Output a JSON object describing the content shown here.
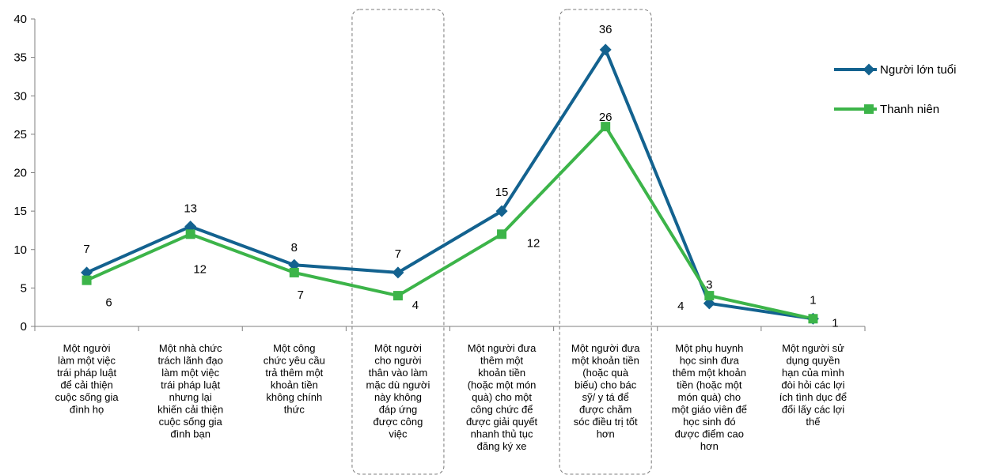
{
  "chart_data": {
    "type": "line",
    "title": "",
    "xlabel": "",
    "ylabel": "",
    "ylim": [
      0,
      40
    ],
    "yticks": [
      0,
      5,
      10,
      15,
      20,
      25,
      30,
      35,
      40
    ],
    "grid": false,
    "legend_position": "right",
    "categories": [
      "Một người làm một việc trái pháp luật để cải thiện cuộc sống gia đình họ",
      "Một nhà chức trách lãnh đạo làm một việc trái pháp luật nhưng lại khiến cải thiện cuộc sống gia đình bạn",
      "Một công chức yêu cầu trả thêm một khoản tiền không chính thức",
      "Một người cho người thân vào làm mặc dù người này không đáp ứng được công việc",
      "Một người đưa thêm một khoản tiền (hoặc một món quà) cho một công chức để được giải quyết nhanh thủ tục đăng ký xe",
      "Một người đưa một khoản tiền (hoặc quà biếu) cho bác sỹ/ y tá để được chăm sóc điều trị tốt hơn",
      "Một phụ huynh học sinh đưa thêm một khoản tiền (hoặc một món quà) cho một giáo viên để học sinh đó được điểm cao hơn",
      "Một người sử dụng quyền hạn của mình đòi hỏi các lợi ích tình dục để đổi lấy các lợi thế"
    ],
    "category_lines": [
      [
        "Một người",
        "làm một việc",
        "trái pháp luật",
        "để cải thiện",
        "cuộc sống gia",
        "đình họ"
      ],
      [
        "Một nhà chức",
        "trách lãnh đạo",
        "làm một việc",
        "trái pháp luật",
        "nhưng lại",
        "khiến cải thiện",
        "cuộc sống gia",
        "đình bạn"
      ],
      [
        "Một công",
        "chức yêu cầu",
        "trả thêm một",
        "khoản tiền",
        "không chính",
        "thức"
      ],
      [
        "Một người",
        "cho người",
        "thân vào làm",
        "mặc dù người",
        "này không",
        "đáp ứng",
        "được công",
        "việc"
      ],
      [
        "Một người đưa",
        "thêm một",
        "khoản tiền",
        "(hoặc một món",
        "quà) cho một",
        "công chức để",
        "được giải quyết",
        "nhanh thủ tục",
        "đăng ký xe"
      ],
      [
        "Một người đưa",
        "một khoản tiền",
        "(hoặc quà",
        "biếu) cho bác",
        "sỹ/ y tá để",
        "được chăm",
        "sóc điều trị tốt",
        "hơn"
      ],
      [
        "Một phụ huynh",
        "học sinh đưa",
        "thêm một khoản",
        "tiền (hoặc một",
        "món quà) cho",
        "một giáo viên để",
        "học sinh đó",
        "được điểm cao",
        "hơn"
      ],
      [
        "Một người sử",
        "dụng quyền",
        "hạn của mình",
        "đòi hỏi các lợi",
        "ích tình dục để",
        "đổi lấy các lợi",
        "thế"
      ]
    ],
    "highlighted_categories": [
      3,
      5
    ],
    "series": [
      {
        "name": "Người lớn tuổi",
        "values": [
          7,
          13,
          8,
          7,
          15,
          36,
          3,
          1
        ],
        "color": "#13628f",
        "marker": "diamond"
      },
      {
        "name": "Thanh niên",
        "values": [
          6,
          12,
          7,
          4,
          12,
          26,
          4,
          1
        ],
        "color": "#3cb449",
        "marker": "square"
      }
    ]
  }
}
